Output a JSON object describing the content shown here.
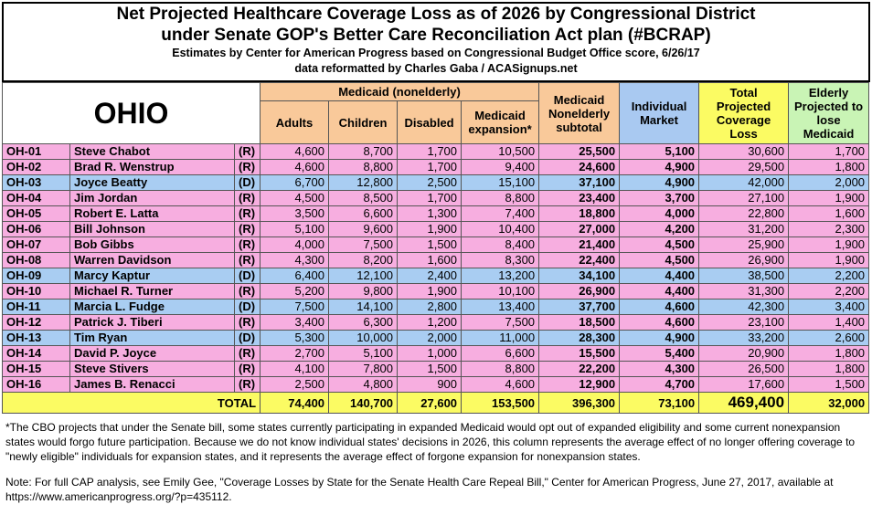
{
  "header": {
    "title_line1": "Net Projected Healthcare Coverage Loss as of 2026 by Congressional District",
    "title_line2": "under Senate GOP's Better Care Reconciliation Act plan (#BCRAP)",
    "subtitle": "Estimates by Center for American Progress based on Congressional Budget Office score, 6/26/17",
    "credit": "data reformatted by Charles Gaba / ACASignups.net"
  },
  "table": {
    "state": "OHIO",
    "group_header": "Medicaid (nonelderly)",
    "columns": [
      "Adults",
      "Children",
      "Disabled",
      "Medicaid expansion*",
      "Medicaid Nonelderly subtotal",
      "Individual Market",
      "Total Projected Coverage Loss",
      "Elderly Projected to lose Medicaid"
    ],
    "rows": [
      [
        "OH-01",
        "Steve Chabot",
        "(R)",
        "4,600",
        "8,700",
        "1,700",
        "10,500",
        "25,500",
        "5,100",
        "30,600",
        "1,700"
      ],
      [
        "OH-02",
        "Brad R. Wenstrup",
        "(R)",
        "4,600",
        "8,800",
        "1,700",
        "9,400",
        "24,600",
        "4,900",
        "29,500",
        "1,800"
      ],
      [
        "OH-03",
        "Joyce Beatty",
        "(D)",
        "6,700",
        "12,800",
        "2,500",
        "15,100",
        "37,100",
        "4,900",
        "42,000",
        "2,000"
      ],
      [
        "OH-04",
        "Jim Jordan",
        "(R)",
        "4,500",
        "8,500",
        "1,700",
        "8,800",
        "23,400",
        "3,700",
        "27,100",
        "1,900"
      ],
      [
        "OH-05",
        "Robert E. Latta",
        "(R)",
        "3,500",
        "6,600",
        "1,300",
        "7,400",
        "18,800",
        "4,000",
        "22,800",
        "1,600"
      ],
      [
        "OH-06",
        "Bill Johnson",
        "(R)",
        "5,100",
        "9,600",
        "1,900",
        "10,400",
        "27,000",
        "4,200",
        "31,200",
        "2,300"
      ],
      [
        "OH-07",
        "Bob Gibbs",
        "(R)",
        "4,000",
        "7,500",
        "1,500",
        "8,400",
        "21,400",
        "4,500",
        "25,900",
        "1,900"
      ],
      [
        "OH-08",
        "Warren Davidson",
        "(R)",
        "4,300",
        "8,200",
        "1,600",
        "8,300",
        "22,400",
        "4,500",
        "26,900",
        "1,900"
      ],
      [
        "OH-09",
        "Marcy Kaptur",
        "(D)",
        "6,400",
        "12,100",
        "2,400",
        "13,200",
        "34,100",
        "4,400",
        "38,500",
        "2,200"
      ],
      [
        "OH-10",
        "Michael R. Turner",
        "(R)",
        "5,200",
        "9,800",
        "1,900",
        "10,100",
        "26,900",
        "4,400",
        "31,300",
        "2,200"
      ],
      [
        "OH-11",
        "Marcia L. Fudge",
        "(D)",
        "7,500",
        "14,100",
        "2,800",
        "13,400",
        "37,700",
        "4,600",
        "42,300",
        "3,400"
      ],
      [
        "OH-12",
        "Patrick J. Tiberi",
        "(R)",
        "3,400",
        "6,300",
        "1,200",
        "7,500",
        "18,500",
        "4,600",
        "23,100",
        "1,400"
      ],
      [
        "OH-13",
        "Tim Ryan",
        "(D)",
        "5,300",
        "10,000",
        "2,000",
        "11,000",
        "28,300",
        "4,900",
        "33,200",
        "2,600"
      ],
      [
        "OH-14",
        "David P. Joyce",
        "(R)",
        "2,700",
        "5,100",
        "1,000",
        "6,600",
        "15,500",
        "5,400",
        "20,900",
        "1,800"
      ],
      [
        "OH-15",
        "Steve Stivers",
        "(R)",
        "4,100",
        "7,800",
        "1,500",
        "8,800",
        "22,200",
        "4,300",
        "26,500",
        "1,800"
      ],
      [
        "OH-16",
        "James B. Renacci",
        "(R)",
        "2,500",
        "4,800",
        "900",
        "4,600",
        "12,900",
        "4,700",
        "17,600",
        "1,500"
      ]
    ],
    "total": [
      "TOTAL",
      "74,400",
      "140,700",
      "27,600",
      "153,500",
      "396,300",
      "73,100",
      "469,400",
      "32,000"
    ]
  },
  "footnotes": {
    "note1": "*The CBO projects that under the Senate bill, some states currently participating in expanded Medicaid would opt out of expanded eligibility and some current nonexpansion states would forgo future participation. Because we do not know individual states' decisions in 2026, this column represents the average effect of no longer offering coverage to \"newly eligible\" individuals for expansion states, and it represents the average effect of forgone expansion for nonexpansion states.",
    "note2": "Note: For full CAP analysis, see Emily Gee, \"Coverage Losses by State for the Senate Health Care Repeal Bill,\" Center for American Progress, June 27, 2017, available at https://www.americanprogress.org/?p=435112."
  }
}
